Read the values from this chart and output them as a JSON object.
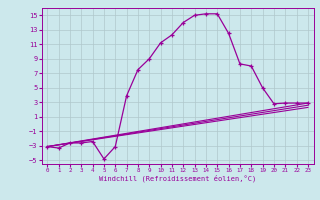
{
  "xlabel": "Windchill (Refroidissement éolien,°C)",
  "bg_color": "#cce8ec",
  "line_color": "#990099",
  "grid_color": "#b0c8cc",
  "xlim": [
    -0.5,
    23.5
  ],
  "ylim": [
    -5.5,
    16.0
  ],
  "xticks": [
    0,
    1,
    2,
    3,
    4,
    5,
    6,
    7,
    8,
    9,
    10,
    11,
    12,
    13,
    14,
    15,
    16,
    17,
    18,
    19,
    20,
    21,
    22,
    23
  ],
  "yticks": [
    -5,
    -3,
    -1,
    1,
    3,
    5,
    7,
    9,
    11,
    13,
    15
  ],
  "main_line": {
    "x": [
      0,
      1,
      2,
      3,
      4,
      5,
      6,
      7,
      8,
      9,
      10,
      11,
      12,
      13,
      14,
      15,
      16,
      17,
      18,
      19,
      20,
      21,
      22,
      23
    ],
    "y": [
      -3.1,
      -3.3,
      -2.6,
      -2.6,
      -2.4,
      -4.8,
      -3.1,
      3.9,
      7.5,
      9.0,
      11.2,
      12.3,
      14.0,
      15.0,
      15.2,
      15.2,
      12.5,
      8.3,
      8.0,
      5.0,
      2.8,
      2.9,
      2.9,
      2.9
    ]
  },
  "straight_lines": [
    {
      "x": [
        0,
        23
      ],
      "y": [
        -3.1,
        2.9
      ]
    },
    {
      "x": [
        0,
        23
      ],
      "y": [
        -3.1,
        2.6
      ]
    },
    {
      "x": [
        0,
        23
      ],
      "y": [
        -3.1,
        2.3
      ]
    }
  ]
}
